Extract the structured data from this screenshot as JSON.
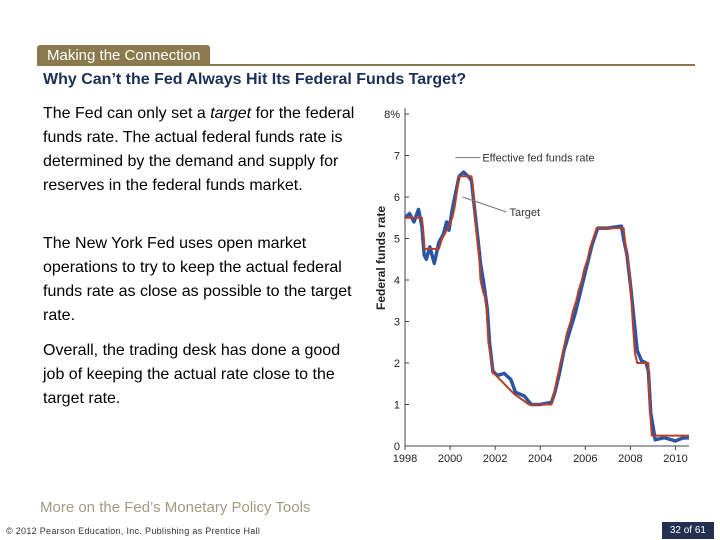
{
  "slide": {
    "section_tag": "Making the Connection",
    "headline": "Why Can’t the Fed Always Hit Its Federal Funds Target?",
    "para1_before": "The Fed can only set a ",
    "para1_em": "target",
    "para1_after": " for the federal funds rate. The actual federal funds rate is determined by the demand and supply for reserves in the federal funds market.",
    "para2": "The New York Fed uses open market operations to try to keep the actual federal funds rate as close as possible to the target rate.",
    "para3": "Overall, the trading desk has done a good job of keeping the actual rate close to the target rate.",
    "more_link": "More on the Fed’s Monetary Policy Tools",
    "copyright": "© 2012 Pearson Education, Inc. Publishing as Prentice Hall",
    "page_number": "32 of 61"
  },
  "chart_data": {
    "type": "line",
    "title": "",
    "xlabel": "",
    "ylabel": "Federal funds rate",
    "xlim": [
      1998,
      2010.6
    ],
    "ylim": [
      0,
      8
    ],
    "x_ticks": [
      "1998",
      "2000",
      "2002",
      "2004",
      "2006",
      "2008",
      "2010"
    ],
    "y_ticks": [
      "0",
      "1",
      "2",
      "3",
      "4",
      "5",
      "6",
      "7",
      "8%"
    ],
    "annotations": [
      "Effective fed funds rate",
      "Target"
    ],
    "colors": {
      "target": "#b5402a",
      "effective": "#2b55a3"
    },
    "series": [
      {
        "name": "Target",
        "x": [
          1998,
          1998.75,
          1998.8,
          1998.87,
          1999.5,
          1999.65,
          1999.9,
          2000.1,
          2000.2,
          2000.4,
          2000.95,
          2001.05,
          2001.1,
          2001.2,
          2001.3,
          2001.35,
          2001.45,
          2001.6,
          2001.65,
          2001.7,
          2001.85,
          2001.9,
          2001.95,
          2002.85,
          2003.5,
          2004.5,
          2004.6,
          2004.7,
          2004.8,
          2004.9,
          2005.0,
          2005.1,
          2005.2,
          2005.35,
          2005.45,
          2005.6,
          2005.7,
          2005.85,
          2005.95,
          2006.1,
          2006.2,
          2006.35,
          2006.5,
          2007.7,
          2007.8,
          2007.95,
          2008.05,
          2008.1,
          2008.2,
          2008.3,
          2008.8,
          2008.85,
          2008.95,
          2010.6
        ],
        "values": [
          5.5,
          5.5,
          5.25,
          4.75,
          4.75,
          5.0,
          5.25,
          5.5,
          5.75,
          6.5,
          6.5,
          6.0,
          5.5,
          5.0,
          4.5,
          4.0,
          3.75,
          3.5,
          3.0,
          2.5,
          2.0,
          1.75,
          1.75,
          1.25,
          1.0,
          1.0,
          1.25,
          1.5,
          1.75,
          2.0,
          2.25,
          2.5,
          2.75,
          3.0,
          3.25,
          3.5,
          3.75,
          4.0,
          4.25,
          4.5,
          4.75,
          5.0,
          5.25,
          5.25,
          4.75,
          4.25,
          3.5,
          3.0,
          2.25,
          2.0,
          2.0,
          1.0,
          0.25,
          0.25
        ]
      },
      {
        "name": "Effective fed funds rate",
        "x": [
          1998,
          1998.2,
          1998.4,
          1998.6,
          1998.75,
          1998.85,
          1998.95,
          1999.1,
          1999.3,
          1999.5,
          1999.7,
          1999.85,
          1999.95,
          2000.1,
          2000.25,
          2000.4,
          2000.6,
          2000.8,
          2000.95,
          2001.05,
          2001.15,
          2001.25,
          2001.35,
          2001.5,
          2001.65,
          2001.75,
          2001.9,
          2002.1,
          2002.4,
          2002.7,
          2002.9,
          2003.3,
          2003.6,
          2004.0,
          2004.5,
          2004.65,
          2004.85,
          2005.05,
          2005.3,
          2005.55,
          2005.8,
          2006.05,
          2006.3,
          2006.55,
          2007.0,
          2007.6,
          2007.7,
          2007.85,
          2008.0,
          2008.15,
          2008.3,
          2008.5,
          2008.7,
          2008.8,
          2008.9,
          2009.1,
          2009.5,
          2010.0,
          2010.3,
          2010.6
        ],
        "values": [
          5.5,
          5.6,
          5.4,
          5.7,
          5.3,
          4.6,
          4.5,
          4.8,
          4.4,
          4.9,
          5.1,
          5.4,
          5.2,
          5.7,
          6.1,
          6.5,
          6.6,
          6.5,
          6.4,
          5.9,
          5.4,
          4.9,
          4.4,
          3.9,
          3.3,
          2.5,
          1.8,
          1.7,
          1.75,
          1.6,
          1.3,
          1.2,
          1.0,
          1.0,
          1.05,
          1.3,
          1.75,
          2.3,
          2.75,
          3.2,
          3.75,
          4.3,
          4.85,
          5.25,
          5.25,
          5.3,
          5.0,
          4.6,
          3.9,
          3.1,
          2.3,
          2.05,
          2.0,
          1.8,
          0.8,
          0.15,
          0.2,
          0.12,
          0.19,
          0.2
        ]
      }
    ]
  }
}
